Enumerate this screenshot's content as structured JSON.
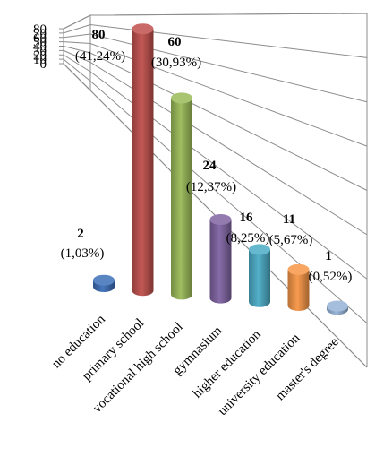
{
  "chart_data": {
    "type": "bar",
    "title": "",
    "xlabel": "",
    "ylabel": "",
    "ylim": [
      0,
      80
    ],
    "yticks": [
      0,
      10,
      20,
      30,
      40,
      50,
      60,
      70,
      80
    ],
    "grid": true,
    "legend": "none",
    "categories": [
      "no education",
      "primary school",
      "vocational high school",
      "gymnasium",
      "higher education",
      "university education",
      "master's degree"
    ],
    "values": [
      2,
      80,
      60,
      24,
      16,
      11,
      1
    ],
    "percent_labels": [
      "(1,03%)",
      "(41,24%)",
      "(30,93%)",
      "(12,37%)",
      "(8,25%)",
      "(5,67%)",
      "(0,52%)"
    ],
    "colors": [
      "#3d6fb8",
      "#c0504d",
      "#9bbb59",
      "#8064a2",
      "#4bacc6",
      "#f79646",
      "#95b3d7"
    ]
  }
}
